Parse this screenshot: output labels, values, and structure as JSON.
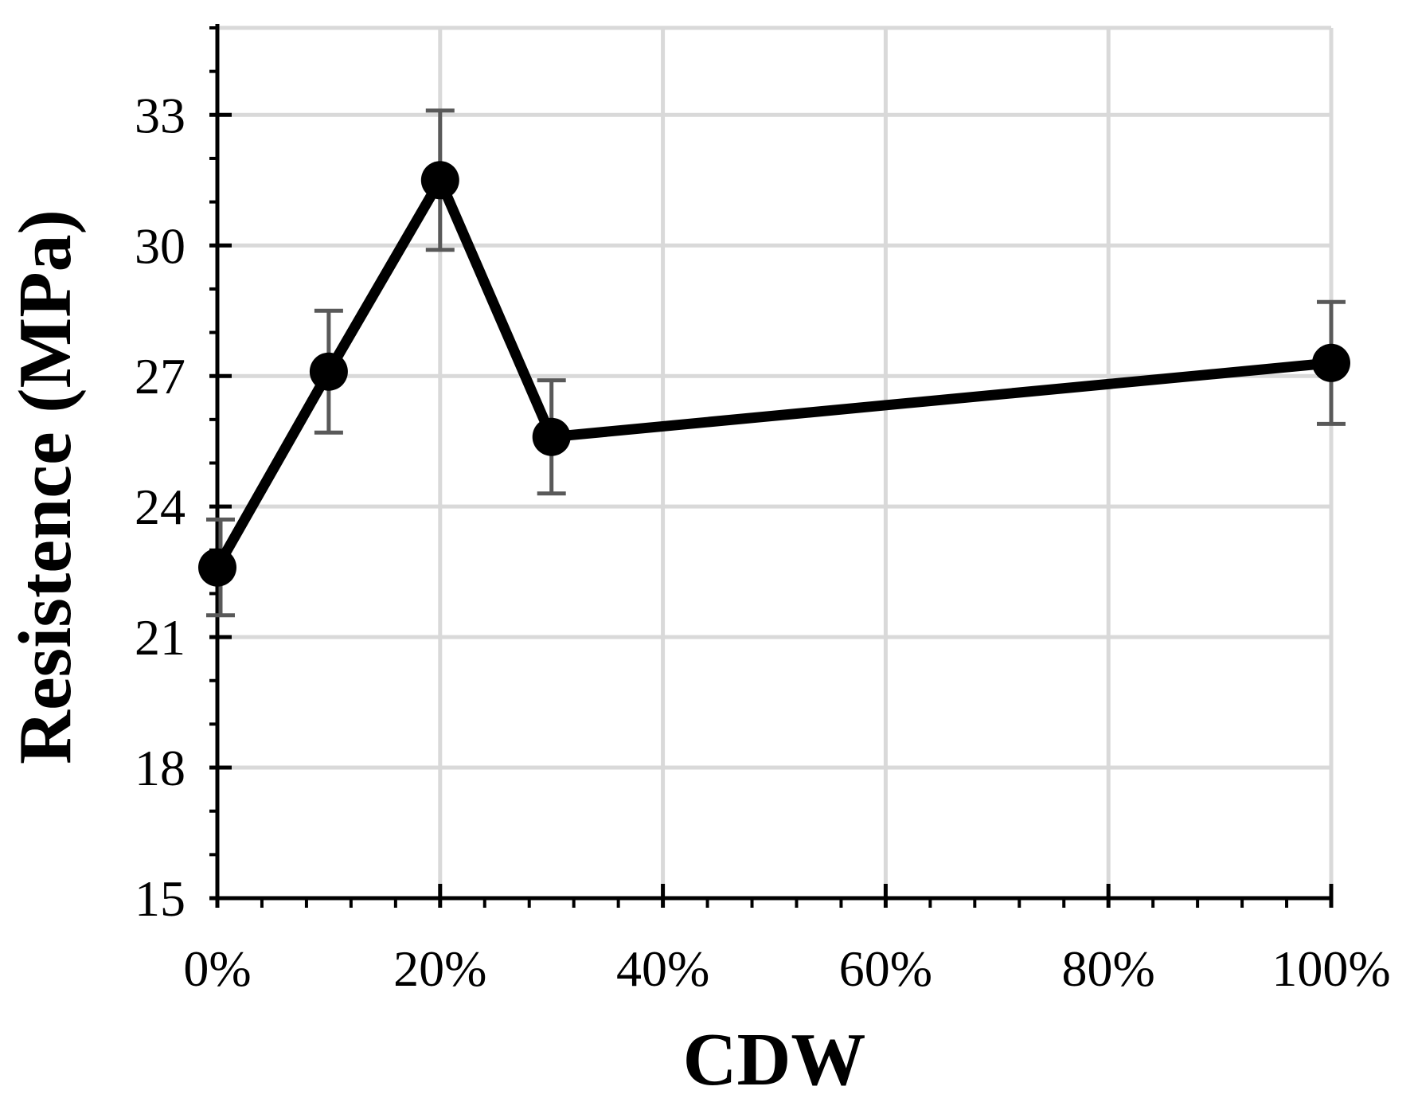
{
  "chart_data": {
    "type": "line",
    "xlabel": "CDW",
    "ylabel": "Resistence (MPa)",
    "xlim": [
      0,
      100
    ],
    "ylim": [
      15,
      35
    ],
    "x_ticks": [
      0,
      20,
      40,
      60,
      80,
      100
    ],
    "x_tick_labels": [
      "0%",
      "20%",
      "40%",
      "60%",
      "80%",
      "100%"
    ],
    "y_ticks": [
      15,
      18,
      21,
      24,
      27,
      30,
      33
    ],
    "y_tick_labels": [
      "15",
      "18",
      "21",
      "24",
      "27",
      "30",
      "33"
    ],
    "grid": true,
    "legend": "none",
    "colors": {
      "line": "#000000",
      "marker": "#000000",
      "error_bar": "#595959",
      "grid": "#d9d9d9"
    },
    "series": [
      {
        "x": [
          0,
          10,
          20,
          30,
          100
        ],
        "y": [
          22.6,
          27.1,
          31.5,
          25.6,
          27.3
        ],
        "error": [
          1.1,
          1.4,
          1.6,
          1.3,
          1.4
        ]
      }
    ]
  }
}
